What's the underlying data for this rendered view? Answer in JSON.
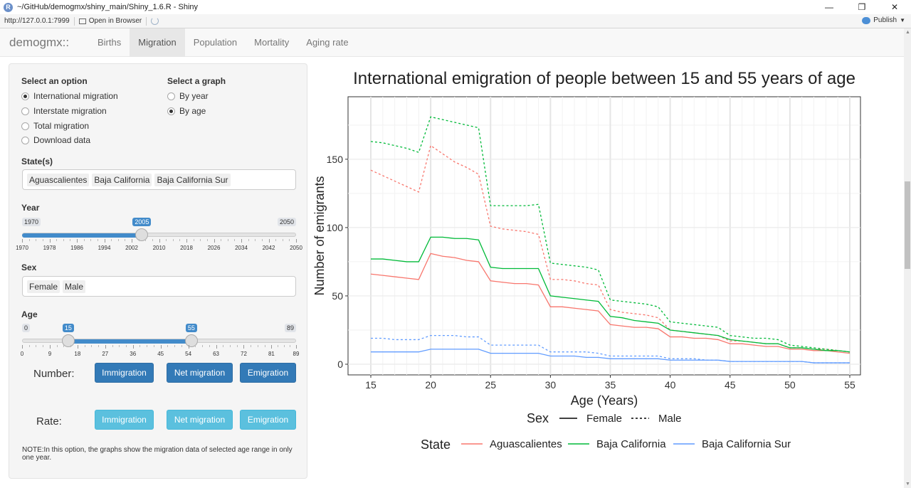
{
  "window": {
    "title": "~/GitHub/demogmx/shiny_main/Shiny_1.6.R - Shiny",
    "app_icon": "R"
  },
  "address_bar": {
    "url": "http://127.0.0.1:7999",
    "open_in_browser": "Open in Browser",
    "publish": "Publish"
  },
  "navbar": {
    "brand": "demogmx::",
    "tabs": [
      "Births",
      "Migration",
      "Population",
      "Mortality",
      "Aging rate"
    ],
    "active_tab": "Migration"
  },
  "sidebar": {
    "option_label": "Select an option",
    "options": [
      {
        "label": "International migration",
        "checked": true
      },
      {
        "label": "Interstate migration",
        "checked": false
      },
      {
        "label": "Total migration",
        "checked": false
      },
      {
        "label": "Download data",
        "checked": false
      }
    ],
    "graph_label": "Select a graph",
    "graphs": [
      {
        "label": "By year",
        "checked": false
      },
      {
        "label": "By age",
        "checked": true
      }
    ],
    "states_label": "State(s)",
    "states": [
      "Aguascalientes",
      "Baja California",
      "Baja California Sur"
    ],
    "year_label": "Year",
    "year_slider": {
      "min": 1970,
      "max": 2050,
      "value": 2005,
      "min_label": "1970",
      "max_label": "2050",
      "value_label": "2005",
      "ticks": [
        "1970",
        "1978",
        "1986",
        "1994",
        "2002",
        "2010",
        "2018",
        "2026",
        "2034",
        "2042",
        "2050"
      ]
    },
    "sex_label": "Sex",
    "sexes": [
      "Female",
      "Male"
    ],
    "age_label": "Age",
    "age_slider": {
      "min": 0,
      "max": 89,
      "from": 15,
      "to": 55,
      "min_label": "0",
      "max_label": "89",
      "from_label": "15",
      "to_label": "55",
      "ticks": [
        "0",
        "9",
        "18",
        "27",
        "36",
        "45",
        "54",
        "63",
        "72",
        "81",
        "89"
      ]
    },
    "number_label": "Number:",
    "number_buttons": [
      "Immigration",
      "Net migration",
      "Emigration"
    ],
    "rate_label": "Rate:",
    "rate_buttons": [
      "Immigration",
      "Net migration",
      "Emigration"
    ],
    "note": "NOTE:In this option, the graphs show the migration data of selected age range in only one year."
  },
  "chart_data": {
    "type": "line",
    "title": "International emigration of people between 15 and 55 years of age",
    "xlabel": "Age (Years)",
    "ylabel": "Number of emigrants",
    "xlim": [
      15,
      55
    ],
    "ylim": [
      0,
      190
    ],
    "xticks": [
      15,
      20,
      25,
      30,
      35,
      40,
      45,
      50,
      55
    ],
    "yticks": [
      0,
      50,
      100,
      150
    ],
    "grid": true,
    "legend_position": "bottom",
    "legend_sex_title": "Sex",
    "legend_sex": [
      {
        "name": "Female",
        "dash": "solid"
      },
      {
        "name": "Male",
        "dash": "dashed"
      }
    ],
    "legend_state_title": "State",
    "legend_state": [
      {
        "name": "Aguascalientes",
        "color": "#F8766D"
      },
      {
        "name": "Baja California",
        "color": "#00BA38"
      },
      {
        "name": "Baja California Sur",
        "color": "#619CFF"
      }
    ],
    "x": [
      15,
      16,
      17,
      18,
      19,
      20,
      21,
      22,
      23,
      24,
      25,
      26,
      27,
      28,
      29,
      30,
      31,
      32,
      33,
      34,
      35,
      36,
      37,
      38,
      39,
      40,
      41,
      42,
      43,
      44,
      45,
      46,
      47,
      48,
      49,
      50,
      51,
      52,
      53,
      54,
      55
    ],
    "series": [
      {
        "state": "Aguascalientes",
        "sex": "Female",
        "color": "#F8766D",
        "dash": "solid",
        "values": [
          66,
          65,
          64,
          63,
          62,
          81,
          79,
          78,
          76,
          75,
          61,
          60,
          59,
          59,
          58,
          42,
          42,
          41,
          40,
          39,
          29,
          28,
          27,
          27,
          26,
          20,
          20,
          19,
          19,
          18,
          15,
          15,
          14,
          13,
          13,
          11,
          11,
          10,
          10,
          9,
          8
        ]
      },
      {
        "state": "Aguascalientes",
        "sex": "Male",
        "color": "#F8766D",
        "dash": "dashed",
        "values": [
          142,
          138,
          134,
          130,
          126,
          160,
          154,
          148,
          144,
          139,
          101,
          99,
          98,
          97,
          95,
          62,
          62,
          61,
          59,
          58,
          40,
          38,
          37,
          36,
          34,
          25,
          24,
          23,
          22,
          21,
          17,
          17,
          16,
          15,
          15,
          12,
          12,
          11,
          11,
          10,
          9
        ]
      },
      {
        "state": "Baja California",
        "sex": "Female",
        "color": "#00BA38",
        "dash": "solid",
        "values": [
          77,
          77,
          76,
          75,
          75,
          93,
          93,
          92,
          92,
          91,
          71,
          70,
          70,
          70,
          70,
          50,
          49,
          48,
          47,
          46,
          35,
          34,
          32,
          31,
          30,
          25,
          24,
          23,
          22,
          21,
          18,
          17,
          16,
          15,
          15,
          12,
          12,
          11,
          10,
          10,
          9
        ]
      },
      {
        "state": "Baja California",
        "sex": "Male",
        "color": "#00BA38",
        "dash": "dashed",
        "values": [
          163,
          162,
          160,
          158,
          155,
          181,
          179,
          177,
          175,
          173,
          116,
          116,
          116,
          116,
          117,
          74,
          73,
          72,
          71,
          69,
          47,
          46,
          45,
          44,
          42,
          31,
          30,
          29,
          28,
          27,
          21,
          20,
          19,
          19,
          18,
          14,
          13,
          12,
          11,
          10,
          9
        ]
      },
      {
        "state": "Baja California Sur",
        "sex": "Female",
        "color": "#619CFF",
        "dash": "solid",
        "values": [
          9,
          9,
          9,
          9,
          9,
          11,
          11,
          11,
          11,
          11,
          8,
          8,
          8,
          8,
          8,
          6,
          6,
          6,
          5,
          5,
          4,
          4,
          4,
          4,
          4,
          3,
          3,
          3,
          3,
          3,
          2,
          2,
          2,
          2,
          2,
          2,
          2,
          1,
          1,
          1,
          1
        ]
      },
      {
        "state": "Baja California Sur",
        "sex": "Male",
        "color": "#619CFF",
        "dash": "dashed",
        "values": [
          19,
          19,
          18,
          18,
          18,
          21,
          21,
          21,
          20,
          20,
          14,
          14,
          14,
          14,
          14,
          9,
          9,
          9,
          9,
          8,
          6,
          6,
          6,
          6,
          6,
          4,
          4,
          4,
          3,
          3,
          2,
          2,
          2,
          2,
          2,
          2,
          2,
          1,
          1,
          1,
          1
        ]
      }
    ]
  }
}
